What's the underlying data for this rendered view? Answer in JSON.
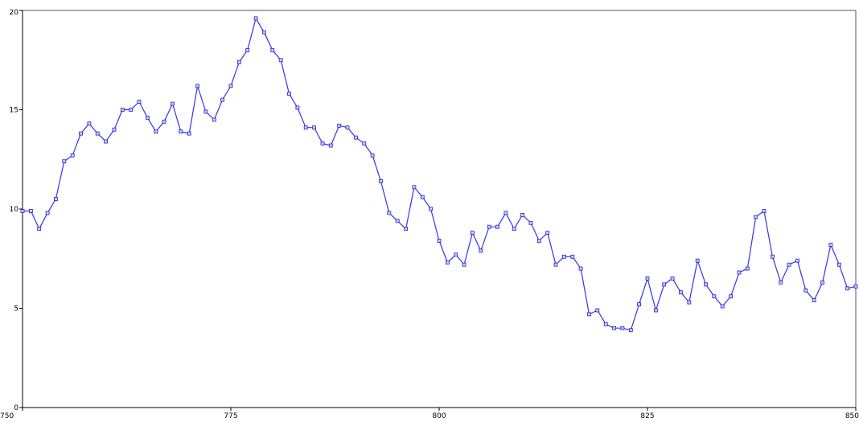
{
  "chart_data": {
    "type": "line",
    "title": "",
    "xlabel": "",
    "ylabel": "",
    "xlim": [
      750,
      850
    ],
    "ylim": [
      0,
      20
    ],
    "grid": false,
    "legend": "none",
    "x_ticks": [
      750,
      775,
      800,
      825,
      850
    ],
    "y_ticks": [
      0,
      5,
      10,
      15,
      20
    ],
    "x_tick_labels": [
      "750",
      "775",
      "800",
      "825",
      "850"
    ],
    "y_tick_labels": [
      "0",
      "5",
      "10",
      "15",
      "20"
    ],
    "colors": {
      "line": "#3333ee",
      "marker_fill": "#ccccff",
      "marker_stroke": "#2222cc"
    },
    "series": [
      {
        "x": [
          750,
          751,
          752,
          753,
          754,
          755,
          756,
          757,
          758,
          759,
          760,
          761,
          762,
          763,
          764,
          765,
          766,
          767,
          768,
          769,
          770,
          771,
          772,
          773,
          774,
          775,
          776,
          777,
          778,
          779,
          780,
          781,
          782,
          783,
          784,
          785,
          786,
          787,
          788,
          789,
          790,
          791,
          792,
          793,
          794,
          795,
          796,
          797,
          798,
          799,
          800,
          801,
          802,
          803,
          804,
          805,
          806,
          807,
          808,
          809,
          810,
          811,
          812,
          813,
          814,
          815,
          816,
          817,
          818,
          819,
          820,
          821,
          822,
          823,
          824,
          825,
          826,
          827,
          828,
          829,
          830,
          831,
          832,
          833,
          834,
          835,
          836,
          837,
          838,
          839,
          840,
          841,
          842,
          843,
          844,
          845,
          846,
          847,
          848,
          849,
          850
        ],
        "y": [
          9.9,
          9.9,
          9.0,
          9.8,
          10.5,
          12.4,
          12.7,
          13.8,
          14.3,
          13.8,
          13.4,
          14.0,
          15.0,
          15.0,
          15.4,
          14.6,
          13.9,
          14.4,
          15.3,
          13.9,
          13.8,
          16.2,
          14.9,
          14.5,
          15.5,
          16.2,
          17.4,
          18.0,
          19.6,
          18.9,
          18.0,
          17.5,
          15.8,
          15.1,
          14.1,
          14.1,
          13.3,
          13.2,
          14.2,
          14.1,
          13.6,
          13.3,
          12.7,
          11.4,
          9.8,
          9.4,
          9.0,
          11.1,
          10.6,
          10.0,
          8.4,
          7.3,
          7.7,
          7.2,
          8.8,
          7.9,
          9.1,
          9.1,
          9.8,
          9.0,
          9.7,
          9.3,
          8.4,
          8.8,
          7.2,
          7.6,
          7.6,
          7.0,
          4.7,
          4.9,
          4.2,
          4.0,
          4.0,
          3.9,
          5.2,
          6.5,
          4.9,
          6.2,
          6.5,
          5.8,
          5.3,
          7.4,
          6.2,
          5.6,
          5.1,
          5.6,
          6.8,
          7.0,
          9.6,
          9.9,
          7.6,
          6.3,
          7.2,
          7.4,
          5.9,
          5.4,
          6.3,
          8.2,
          7.2,
          6.0,
          6.1
        ]
      }
    ]
  }
}
